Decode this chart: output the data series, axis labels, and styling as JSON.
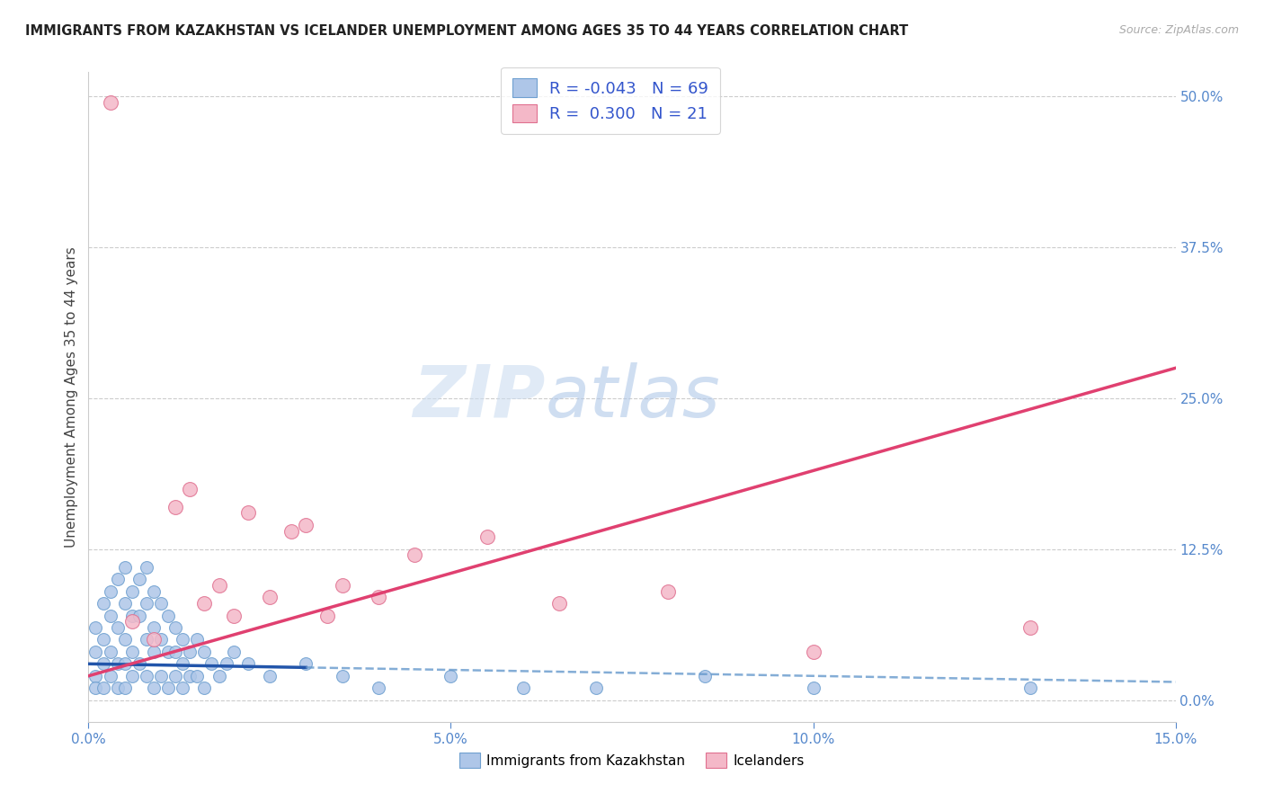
{
  "title": "IMMIGRANTS FROM KAZAKHSTAN VS ICELANDER UNEMPLOYMENT AMONG AGES 35 TO 44 YEARS CORRELATION CHART",
  "source": "Source: ZipAtlas.com",
  "ylabel": "Unemployment Among Ages 35 to 44 years",
  "xlim": [
    0.0,
    0.15
  ],
  "ylim": [
    -0.018,
    0.52
  ],
  "xticks": [
    0.0,
    0.05,
    0.1,
    0.15
  ],
  "xtick_labels": [
    "0.0%",
    "5.0%",
    "10.0%",
    "15.0%"
  ],
  "yticks_right": [
    0.0,
    0.125,
    0.25,
    0.375,
    0.5
  ],
  "ytick_labels_right": [
    "0.0%",
    "12.5%",
    "25.0%",
    "37.5%",
    "50.0%"
  ],
  "legend_r_blue": "-0.043",
  "legend_n_blue": "69",
  "legend_r_pink": "0.300",
  "legend_n_pink": "21",
  "legend_label_blue": "Immigrants from Kazakhstan",
  "legend_label_pink": "Icelanders",
  "blue_color": "#aec6e8",
  "blue_edge_color": "#6fa0d0",
  "pink_color": "#f4b8c8",
  "pink_edge_color": "#e07090",
  "trend_blue_solid_color": "#2255aa",
  "trend_blue_dash_color": "#6699cc",
  "trend_pink_color": "#e04070",
  "dot_size_blue": 100,
  "dot_size_pink": 130,
  "blue_scatter_x": [
    0.001,
    0.001,
    0.001,
    0.001,
    0.002,
    0.002,
    0.002,
    0.002,
    0.003,
    0.003,
    0.003,
    0.003,
    0.004,
    0.004,
    0.004,
    0.004,
    0.005,
    0.005,
    0.005,
    0.005,
    0.005,
    0.006,
    0.006,
    0.006,
    0.006,
    0.007,
    0.007,
    0.007,
    0.008,
    0.008,
    0.008,
    0.008,
    0.009,
    0.009,
    0.009,
    0.009,
    0.01,
    0.01,
    0.01,
    0.011,
    0.011,
    0.011,
    0.012,
    0.012,
    0.012,
    0.013,
    0.013,
    0.013,
    0.014,
    0.014,
    0.015,
    0.015,
    0.016,
    0.016,
    0.017,
    0.018,
    0.019,
    0.02,
    0.022,
    0.025,
    0.03,
    0.035,
    0.04,
    0.05,
    0.06,
    0.07,
    0.085,
    0.1,
    0.13
  ],
  "blue_scatter_y": [
    0.04,
    0.06,
    0.02,
    0.01,
    0.05,
    0.08,
    0.03,
    0.01,
    0.07,
    0.09,
    0.04,
    0.02,
    0.1,
    0.06,
    0.03,
    0.01,
    0.11,
    0.08,
    0.05,
    0.03,
    0.01,
    0.09,
    0.07,
    0.04,
    0.02,
    0.1,
    0.07,
    0.03,
    0.11,
    0.08,
    0.05,
    0.02,
    0.09,
    0.06,
    0.04,
    0.01,
    0.08,
    0.05,
    0.02,
    0.07,
    0.04,
    0.01,
    0.06,
    0.04,
    0.02,
    0.05,
    0.03,
    0.01,
    0.04,
    0.02,
    0.05,
    0.02,
    0.04,
    0.01,
    0.03,
    0.02,
    0.03,
    0.04,
    0.03,
    0.02,
    0.03,
    0.02,
    0.01,
    0.02,
    0.01,
    0.01,
    0.02,
    0.01,
    0.01
  ],
  "pink_scatter_x": [
    0.003,
    0.006,
    0.009,
    0.012,
    0.014,
    0.016,
    0.018,
    0.02,
    0.022,
    0.025,
    0.028,
    0.03,
    0.033,
    0.035,
    0.04,
    0.045,
    0.055,
    0.065,
    0.08,
    0.1,
    0.13
  ],
  "pink_scatter_y": [
    0.495,
    0.065,
    0.05,
    0.16,
    0.175,
    0.08,
    0.095,
    0.07,
    0.155,
    0.085,
    0.14,
    0.145,
    0.07,
    0.095,
    0.085,
    0.12,
    0.135,
    0.08,
    0.09,
    0.04,
    0.06
  ],
  "blue_trend_start_x": 0.0,
  "blue_trend_solid_end_x": 0.03,
  "blue_trend_end_x": 0.15,
  "blue_trend_intercept": 0.03,
  "blue_trend_slope": -0.1,
  "pink_trend_intercept": 0.02,
  "pink_trend_slope": 1.7,
  "grid_color": "#cccccc",
  "background_color": "#ffffff",
  "watermark_zip_color": "#ccddf0",
  "watermark_atlas_color": "#b0c8e8",
  "watermark_alpha": 0.6
}
